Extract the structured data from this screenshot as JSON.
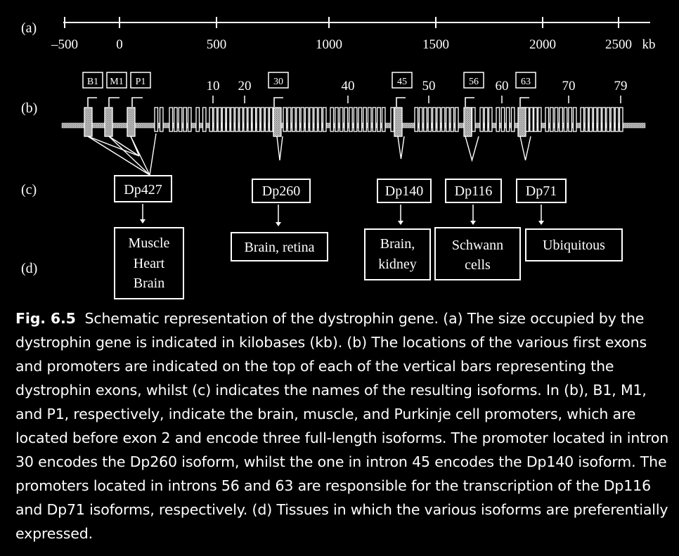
{
  "row_labels": {
    "a": "(a)",
    "b": "(b)",
    "c": "(c)",
    "d": "(d)"
  },
  "scale": {
    "ticks": [
      "–500",
      "0",
      "500",
      "1000",
      "1500",
      "2000",
      "2500"
    ],
    "unit": "kb"
  },
  "promoters": {
    "first_exons": [
      "B1",
      "M1",
      "P1"
    ],
    "intron_promoters": [
      "30",
      "45",
      "56",
      "63"
    ]
  },
  "exon_numbers": [
    "10",
    "20",
    "40",
    "50",
    "60",
    "70",
    "79"
  ],
  "isoforms": [
    {
      "name": "Dp427",
      "tissue_lines": [
        "Muscle",
        "Heart",
        "Brain"
      ]
    },
    {
      "name": "Dp260",
      "tissue_lines": [
        "Brain, retina"
      ]
    },
    {
      "name": "Dp140",
      "tissue_lines": [
        "Brain,",
        "kidney"
      ]
    },
    {
      "name": "Dp116",
      "tissue_lines": [
        "Schwann",
        "cells"
      ]
    },
    {
      "name": "Dp71",
      "tissue_lines": [
        "Ubiquitous"
      ]
    }
  ],
  "caption": {
    "label": "Fig. 6.5",
    "text": "Schematic representation of the dystrophin gene. (a) The size occupied by the dystrophin gene is indicated in kilobases (kb). (b) The locations of the various first exons and promoters are indicated on the top of each of the vertical bars representing the dystrophin exons, whilst (c) indicates the names of the resulting isoforms. In (b), B1, M1, and P1, respectively, indicate the brain, muscle, and Purkinje cell promoters, which are located before exon 2 and encode three full-length isoforms. The promoter located in intron 30 encodes the Dp260 isoform, whilst the one in intron 45 encodes the Dp140 isoform. The promoters located in introns 56 and 63 are responsible for the transcription of the Dp116 and Dp71 isoforms, respectively. (d) Tissues in which the various isoforms are preferentially expressed."
  },
  "colors": {
    "background": "#000000",
    "foreground": "#ffffff",
    "promoter_fill": "#c8c8c8"
  }
}
